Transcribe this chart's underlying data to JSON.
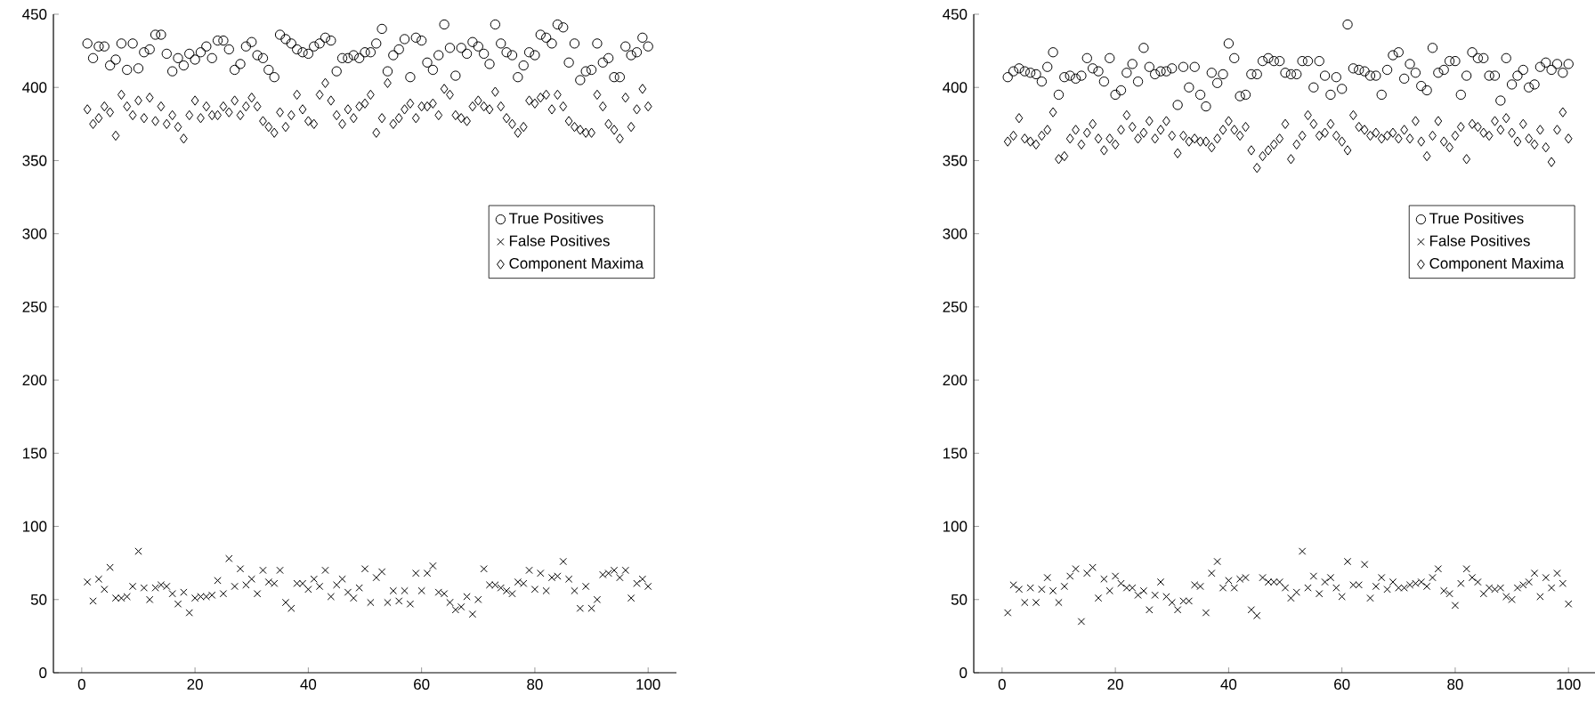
{
  "chart_data": [
    {
      "type": "scatter",
      "xlim": [
        -5,
        105
      ],
      "ylim": [
        0,
        450
      ],
      "xticks": [
        0,
        20,
        40,
        60,
        80,
        100
      ],
      "yticks": [
        0,
        50,
        100,
        150,
        200,
        250,
        300,
        350,
        400,
        450
      ],
      "legend": "right",
      "x": [
        1,
        2,
        3,
        4,
        5,
        6,
        7,
        8,
        9,
        10,
        11,
        12,
        13,
        14,
        15,
        16,
        17,
        18,
        19,
        20,
        21,
        22,
        23,
        24,
        25,
        26,
        27,
        28,
        29,
        30,
        31,
        32,
        33,
        34,
        35,
        36,
        37,
        38,
        39,
        40,
        41,
        42,
        43,
        44,
        45,
        46,
        47,
        48,
        49,
        50,
        51,
        52,
        53,
        54,
        55,
        56,
        57,
        58,
        59,
        60,
        61,
        62,
        63,
        64,
        65,
        66,
        67,
        68,
        69,
        70,
        71,
        72,
        73,
        74,
        75,
        76,
        77,
        78,
        79,
        80,
        81,
        82,
        83,
        84,
        85,
        86,
        87,
        88,
        89,
        90,
        91,
        92,
        93,
        94,
        95,
        96,
        97,
        98,
        99,
        100
      ],
      "series": [
        {
          "name": "True Positives",
          "color": "#000000",
          "marker": "circle",
          "values": [
            430,
            420,
            428,
            428,
            415,
            419,
            430,
            412,
            430,
            413,
            424,
            426,
            436,
            436,
            423,
            411,
            420,
            415,
            423,
            419,
            424,
            428,
            420,
            432,
            432,
            426,
            412,
            416,
            428,
            431,
            422,
            420,
            412,
            407,
            436,
            433,
            430,
            426,
            424,
            423,
            428,
            430,
            434,
            432,
            411,
            420,
            420,
            422,
            420,
            424,
            424,
            430,
            440,
            411,
            422,
            426,
            433,
            407,
            434,
            432,
            417,
            412,
            422,
            443,
            427,
            408,
            427,
            423,
            431,
            428,
            423,
            416,
            443,
            430,
            424,
            422,
            407,
            415,
            424,
            422,
            436,
            434,
            430,
            443,
            441,
            417,
            430,
            405,
            411,
            412,
            430,
            417,
            420,
            407,
            407,
            428,
            422,
            424,
            434,
            428
          ]
        },
        {
          "name": "False Positives",
          "color": "#000000",
          "marker": "cross",
          "values": [
            62,
            49,
            64,
            57,
            72,
            51,
            51,
            52,
            59,
            83,
            58,
            50,
            58,
            60,
            59,
            54,
            47,
            55,
            41,
            51,
            52,
            52,
            53,
            63,
            54,
            78,
            59,
            71,
            60,
            64,
            54,
            70,
            62,
            61,
            70,
            48,
            44,
            61,
            61,
            57,
            64,
            59,
            70,
            52,
            60,
            64,
            55,
            51,
            58,
            71,
            48,
            65,
            69,
            48,
            56,
            49,
            56,
            47,
            68,
            56,
            68,
            73,
            55,
            54,
            48,
            43,
            45,
            52,
            40,
            50,
            71,
            60,
            60,
            58,
            56,
            54,
            62,
            61,
            70,
            57,
            68,
            56,
            65,
            66,
            76,
            64,
            56,
            44,
            59,
            44,
            50,
            67,
            68,
            70,
            65,
            70,
            51,
            61,
            64,
            59
          ]
        },
        {
          "name": "Component Maxima",
          "color": "#000000",
          "marker": "diamond",
          "values": [
            385,
            375,
            379,
            387,
            383,
            367,
            395,
            387,
            381,
            391,
            379,
            393,
            377,
            387,
            375,
            381,
            373,
            365,
            381,
            391,
            379,
            387,
            381,
            381,
            387,
            383,
            391,
            381,
            387,
            393,
            387,
            377,
            373,
            369,
            383,
            373,
            381,
            395,
            385,
            377,
            375,
            395,
            403,
            391,
            381,
            375,
            385,
            379,
            387,
            389,
            395,
            369,
            379,
            403,
            375,
            379,
            385,
            389,
            379,
            387,
            387,
            389,
            381,
            399,
            395,
            381,
            379,
            377,
            387,
            391,
            387,
            385,
            397,
            387,
            379,
            375,
            369,
            373,
            391,
            389,
            393,
            395,
            385,
            395,
            387,
            377,
            373,
            371,
            369,
            369,
            395,
            387,
            375,
            371,
            365,
            393,
            373,
            385,
            399,
            387
          ]
        }
      ]
    },
    {
      "type": "scatter",
      "xlim": [
        -5,
        105
      ],
      "ylim": [
        0,
        450
      ],
      "xticks": [
        0,
        20,
        40,
        60,
        80,
        100
      ],
      "yticks": [
        0,
        50,
        100,
        150,
        200,
        250,
        300,
        350,
        400,
        450
      ],
      "legend": "right",
      "x": [
        1,
        2,
        3,
        4,
        5,
        6,
        7,
        8,
        9,
        10,
        11,
        12,
        13,
        14,
        15,
        16,
        17,
        18,
        19,
        20,
        21,
        22,
        23,
        24,
        25,
        26,
        27,
        28,
        29,
        30,
        31,
        32,
        33,
        34,
        35,
        36,
        37,
        38,
        39,
        40,
        41,
        42,
        43,
        44,
        45,
        46,
        47,
        48,
        49,
        50,
        51,
        52,
        53,
        54,
        55,
        56,
        57,
        58,
        59,
        60,
        61,
        62,
        63,
        64,
        65,
        66,
        67,
        68,
        69,
        70,
        71,
        72,
        73,
        74,
        75,
        76,
        77,
        78,
        79,
        80,
        81,
        82,
        83,
        84,
        85,
        86,
        87,
        88,
        89,
        90,
        91,
        92,
        93,
        94,
        95,
        96,
        97,
        98,
        99,
        100
      ],
      "series": [
        {
          "name": "True Positives",
          "color": "#000000",
          "marker": "circle",
          "values": [
            407,
            411,
            413,
            411,
            410,
            409,
            404,
            414,
            424,
            395,
            407,
            408,
            406,
            408,
            420,
            413,
            411,
            404,
            420,
            395,
            398,
            410,
            416,
            404,
            427,
            414,
            409,
            411,
            411,
            413,
            388,
            414,
            400,
            414,
            395,
            387,
            410,
            403,
            409,
            430,
            420,
            394,
            395,
            409,
            409,
            418,
            420,
            418,
            418,
            410,
            409,
            409,
            418,
            418,
            400,
            418,
            408,
            395,
            407,
            399,
            443,
            413,
            412,
            411,
            408,
            408,
            395,
            412,
            422,
            424,
            406,
            416,
            410,
            401,
            398,
            427,
            410,
            412,
            418,
            418,
            395,
            408,
            424,
            420,
            420,
            408,
            408,
            391,
            420,
            402,
            408,
            412,
            400,
            402,
            414,
            417,
            412,
            416,
            410,
            416
          ]
        },
        {
          "name": "False Positives",
          "color": "#000000",
          "marker": "cross",
          "values": [
            41,
            60,
            57,
            48,
            58,
            48,
            57,
            65,
            56,
            48,
            59,
            66,
            71,
            35,
            68,
            72,
            51,
            64,
            56,
            66,
            61,
            58,
            58,
            53,
            56,
            43,
            53,
            62,
            52,
            48,
            43,
            49,
            49,
            60,
            59,
            41,
            68,
            76,
            58,
            63,
            58,
            64,
            65,
            43,
            39,
            65,
            62,
            62,
            62,
            58,
            51,
            55,
            83,
            58,
            66,
            54,
            62,
            65,
            58,
            52,
            76,
            60,
            60,
            74,
            51,
            59,
            65,
            57,
            62,
            58,
            58,
            60,
            61,
            62,
            59,
            65,
            71,
            56,
            54,
            46,
            61,
            71,
            65,
            62,
            54,
            58,
            57,
            58,
            52,
            50,
            58,
            60,
            62,
            68,
            52,
            65,
            58,
            68,
            61,
            47
          ]
        },
        {
          "name": "Component Maxima",
          "color": "#000000",
          "marker": "diamond",
          "values": [
            363,
            367,
            379,
            365,
            363,
            361,
            367,
            371,
            383,
            351,
            353,
            365,
            371,
            361,
            369,
            375,
            365,
            357,
            365,
            361,
            371,
            381,
            373,
            365,
            369,
            377,
            365,
            371,
            377,
            367,
            355,
            367,
            363,
            365,
            363,
            363,
            359,
            365,
            371,
            377,
            371,
            367,
            373,
            357,
            345,
            353,
            357,
            361,
            365,
            375,
            351,
            361,
            367,
            381,
            375,
            367,
            369,
            375,
            367,
            363,
            357,
            381,
            373,
            371,
            367,
            369,
            365,
            367,
            369,
            365,
            371,
            365,
            377,
            363,
            353,
            367,
            377,
            363,
            359,
            367,
            373,
            351,
            375,
            373,
            369,
            367,
            377,
            371,
            379,
            369,
            363,
            375,
            365,
            361,
            371,
            359,
            349,
            371,
            383,
            365
          ]
        }
      ]
    }
  ]
}
